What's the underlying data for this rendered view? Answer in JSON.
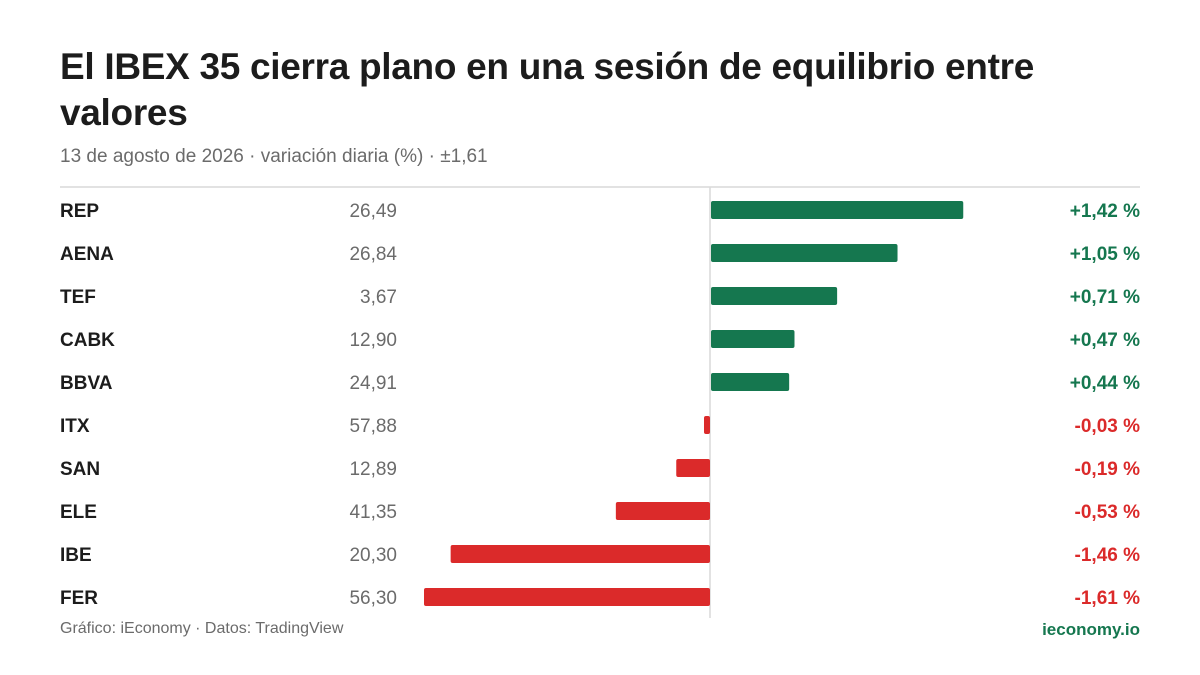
{
  "title": "El IBEX 35 cierra plano en una sesión de equilibrio entre valores",
  "subtitle": "13 de agosto de 2026 · variación diaria (%) · ±1,61",
  "footer": {
    "source": "Gráfico: iEconomy · Datos: TradingView",
    "brand": "ieconomy.io"
  },
  "colors": {
    "positive": "#15774f",
    "negative": "#db2a2a",
    "label": "#1c1c1c",
    "price": "#6b6b6b",
    "axis": "#d9d9d9"
  },
  "chart_data": {
    "type": "bar",
    "orientation": "horizontal",
    "categories": [
      "REP",
      "AENA",
      "TEF",
      "CABK",
      "BBVA",
      "ITX",
      "SAN",
      "ELE",
      "IBE",
      "FER"
    ],
    "prices": [
      "26,49",
      "26,84",
      "3,67",
      "12,90",
      "24,91",
      "57,88",
      "12,89",
      "41,35",
      "20,30",
      "56,30"
    ],
    "values": [
      1.42,
      1.05,
      0.71,
      0.47,
      0.44,
      -0.03,
      -0.19,
      -0.53,
      -1.46,
      -1.61
    ],
    "value_labels": [
      "+1,42 %",
      "+1,05 %",
      "+0,71 %",
      "+0,47 %",
      "+0,44 %",
      "-0,03 %",
      "-0,19 %",
      "-0,53 %",
      "-1,46 %",
      "-1,61 %"
    ],
    "xlim": [
      -1.61,
      1.61
    ],
    "grid": false,
    "legend": "none"
  }
}
